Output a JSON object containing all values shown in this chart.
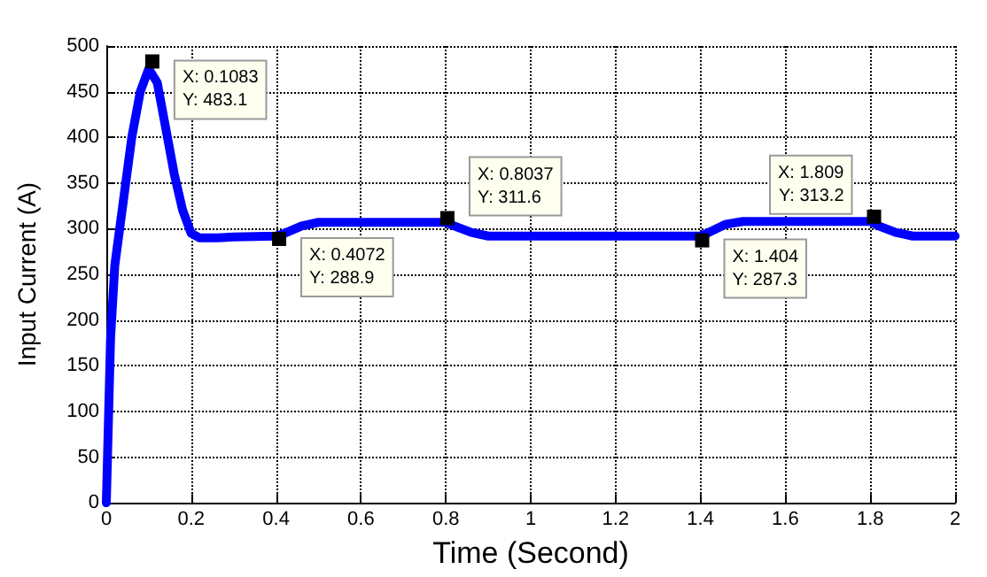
{
  "chart_data": {
    "type": "line",
    "xlabel": "Time (Second)",
    "ylabel": "Input Current (A)",
    "x": [
      0,
      0.01,
      0.02,
      0.04,
      0.06,
      0.08,
      0.1,
      0.12,
      0.14,
      0.16,
      0.18,
      0.2,
      0.22,
      0.26,
      0.3,
      0.4,
      0.42,
      0.46,
      0.5,
      0.6,
      0.7,
      0.8,
      0.82,
      0.86,
      0.9,
      1,
      1.2,
      1.4,
      1.42,
      1.46,
      1.5,
      1.6,
      1.7,
      1.8,
      1.82,
      1.86,
      1.9,
      2
    ],
    "series": [
      {
        "color": "#0000ff",
        "values": [
          0,
          180,
          260,
          330,
          400,
          450,
          475,
          460,
          410,
          360,
          320,
          295,
          290,
          290,
          291,
          292,
          295,
          303,
          307,
          307,
          307,
          307,
          303,
          296,
          292,
          292,
          292,
          292,
          296,
          305,
          308,
          308,
          308,
          308,
          303,
          296,
          292,
          292
        ]
      }
    ],
    "xlim": [
      0,
      2
    ],
    "xticks": [
      0,
      0.2,
      0.4,
      0.6,
      0.8,
      1,
      1.2,
      1.4,
      1.6,
      1.8,
      2
    ],
    "ylim": [
      0,
      500
    ],
    "yticks": [
      0,
      50,
      100,
      150,
      200,
      250,
      300,
      350,
      400,
      450,
      500
    ],
    "grid": true,
    "marker": "none",
    "line_style": "solid",
    "annotations": [
      {
        "text": "X: 0.1083\nY: 483.1",
        "x": 0.1083,
        "y": 483.1
      },
      {
        "text": "X: 0.4072\nY: 288.9",
        "x": 0.4072,
        "y": 288.9
      },
      {
        "text": "X: 0.8037\nY: 311.6",
        "x": 0.8037,
        "y": 311.6
      },
      {
        "text": "X: 1.404\nY: 287.3",
        "x": 1.404,
        "y": 287.3
      },
      {
        "text": "X: 1.809\nY: 313.2",
        "x": 1.809,
        "y": 313.2
      }
    ]
  }
}
